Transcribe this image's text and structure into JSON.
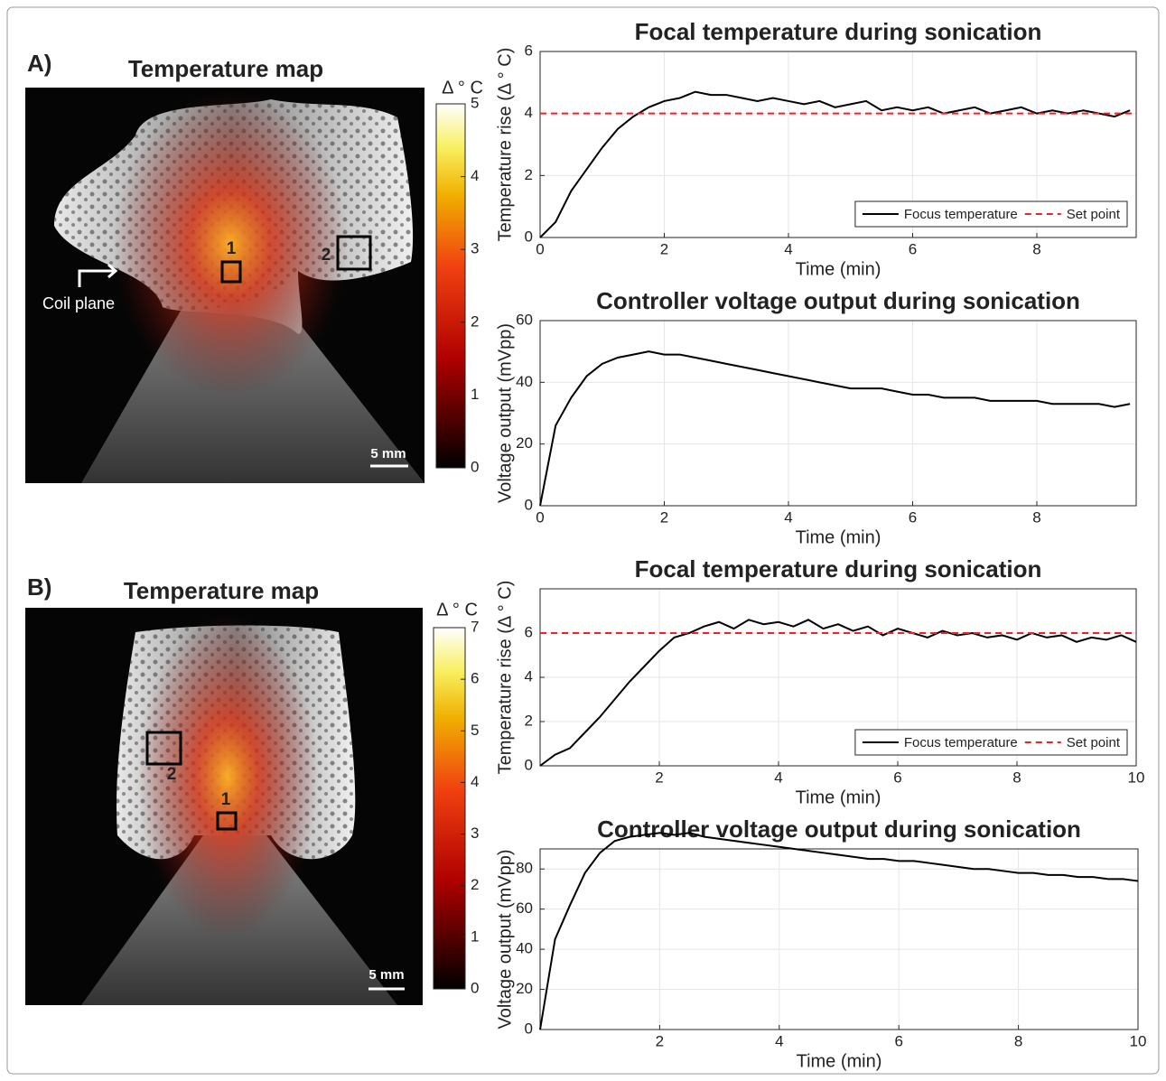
{
  "panels": [
    {
      "label": "A)",
      "map": {
        "title": "Temperature map",
        "colorbar": {
          "label": "Δ ° C",
          "lim": [
            0,
            5
          ],
          "ticks": [
            0,
            1,
            2,
            3,
            4,
            5
          ]
        },
        "roi_labels": [
          "1",
          "2"
        ],
        "annotation": "Coil plane",
        "scale_bar": "5 mm"
      }
    },
    {
      "label": "B)",
      "map": {
        "title": "Temperature map",
        "colorbar": {
          "label": "Δ ° C",
          "lim": [
            0,
            7
          ],
          "ticks": [
            0,
            1,
            2,
            3,
            4,
            5,
            6,
            7
          ]
        },
        "roi_labels": [
          "1",
          "2"
        ],
        "scale_bar": "5 mm"
      }
    }
  ],
  "chart_data": [
    {
      "type": "line",
      "title": "Focal temperature during sonication",
      "xlabel": "Time (min)",
      "ylabel": "Temperature rise (Δ ° C)",
      "xlim": [
        0,
        9.6
      ],
      "ylim": [
        0,
        6
      ],
      "xticks": [
        0,
        2,
        4,
        6,
        8
      ],
      "yticks": [
        0,
        2,
        4,
        6
      ],
      "grid": true,
      "legend": "lower right",
      "x": [
        0,
        0.25,
        0.5,
        0.75,
        1,
        1.25,
        1.5,
        1.75,
        2,
        2.25,
        2.5,
        2.75,
        3,
        3.25,
        3.5,
        3.75,
        4,
        4.25,
        4.5,
        4.75,
        5,
        5.25,
        5.5,
        5.75,
        6,
        6.25,
        6.5,
        6.75,
        7,
        7.25,
        7.5,
        7.75,
        8,
        8.25,
        8.5,
        8.75,
        9,
        9.25,
        9.5
      ],
      "series": [
        {
          "name": "Focus temperature",
          "color": "#000000",
          "values": [
            0,
            0.5,
            1.5,
            2.2,
            2.9,
            3.5,
            3.9,
            4.2,
            4.4,
            4.5,
            4.7,
            4.6,
            4.6,
            4.5,
            4.4,
            4.5,
            4.4,
            4.3,
            4.4,
            4.2,
            4.3,
            4.4,
            4.1,
            4.2,
            4.1,
            4.2,
            4.0,
            4.1,
            4.2,
            4.0,
            4.1,
            4.2,
            4.0,
            4.1,
            4.0,
            4.1,
            4.0,
            3.9,
            4.1
          ]
        },
        {
          "name": "Set point",
          "color": "#e8262a",
          "linestyle": "dashed",
          "x": [
            0,
            9.6
          ],
          "values": [
            4,
            4
          ]
        }
      ]
    },
    {
      "type": "line",
      "title": "Controller voltage output during sonication",
      "xlabel": "Time (min)",
      "ylabel": "Voltage output (mVpp)",
      "xlim": [
        0,
        9.6
      ],
      "ylim": [
        0,
        60
      ],
      "xticks": [
        0,
        2,
        4,
        6,
        8
      ],
      "yticks": [
        0,
        20,
        40,
        60
      ],
      "grid": true,
      "x": [
        0,
        0.25,
        0.5,
        0.75,
        1,
        1.25,
        1.5,
        1.75,
        2,
        2.25,
        2.5,
        2.75,
        3,
        3.25,
        3.5,
        3.75,
        4,
        4.25,
        4.5,
        4.75,
        5,
        5.25,
        5.5,
        5.75,
        6,
        6.25,
        6.5,
        6.75,
        7,
        7.25,
        7.5,
        7.75,
        8,
        8.25,
        8.5,
        8.75,
        9,
        9.25,
        9.5
      ],
      "series": [
        {
          "color": "#000000",
          "values": [
            0,
            26,
            35,
            42,
            46,
            48,
            49,
            50,
            49,
            49,
            48,
            47,
            46,
            45,
            44,
            43,
            42,
            41,
            40,
            39,
            38,
            38,
            38,
            37,
            36,
            36,
            35,
            35,
            35,
            34,
            34,
            34,
            34,
            33,
            33,
            33,
            33,
            32,
            33
          ]
        }
      ]
    },
    {
      "type": "line",
      "title": "Focal temperature during sonication",
      "xlabel": "Time (min)",
      "ylabel": "Temperature rise (Δ ° C)",
      "xlim": [
        0,
        10
      ],
      "ylim": [
        0,
        8
      ],
      "xticks": [
        2,
        4,
        6,
        8,
        10
      ],
      "yticks": [
        0,
        2,
        4,
        6
      ],
      "grid": true,
      "legend": "lower right",
      "x": [
        0,
        0.25,
        0.5,
        0.75,
        1,
        1.25,
        1.5,
        1.75,
        2,
        2.25,
        2.5,
        2.75,
        3,
        3.25,
        3.5,
        3.75,
        4,
        4.25,
        4.5,
        4.75,
        5,
        5.25,
        5.5,
        5.75,
        6,
        6.25,
        6.5,
        6.75,
        7,
        7.25,
        7.5,
        7.75,
        8,
        8.25,
        8.5,
        8.75,
        9,
        9.25,
        9.5,
        9.75,
        10
      ],
      "series": [
        {
          "name": "Focus temperature",
          "color": "#000000",
          "values": [
            0,
            0.5,
            0.8,
            1.5,
            2.2,
            3.0,
            3.8,
            4.5,
            5.2,
            5.8,
            6.0,
            6.3,
            6.5,
            6.2,
            6.6,
            6.4,
            6.5,
            6.3,
            6.6,
            6.2,
            6.4,
            6.1,
            6.3,
            5.9,
            6.2,
            6.0,
            5.8,
            6.1,
            5.9,
            6.0,
            5.8,
            5.9,
            5.7,
            6.0,
            5.8,
            5.9,
            5.6,
            5.8,
            5.7,
            5.9,
            5.6
          ]
        },
        {
          "name": "Set point",
          "color": "#e8262a",
          "linestyle": "dashed",
          "x": [
            0,
            10
          ],
          "values": [
            6,
            6
          ]
        }
      ]
    },
    {
      "type": "line",
      "title": "Controller voltage output during sonication",
      "xlabel": "Time (min)",
      "ylabel": "Voltage output (mVpp)",
      "xlim": [
        0,
        10
      ],
      "ylim": [
        0,
        90
      ],
      "xticks": [
        2,
        4,
        6,
        8,
        10
      ],
      "yticks": [
        0,
        20,
        40,
        60,
        80
      ],
      "grid": true,
      "x": [
        0,
        0.25,
        0.5,
        0.75,
        1,
        1.25,
        1.5,
        1.75,
        2,
        2.25,
        2.5,
        2.75,
        3,
        3.25,
        3.5,
        3.75,
        4,
        4.25,
        4.5,
        4.75,
        5,
        5.25,
        5.5,
        5.75,
        6,
        6.25,
        6.5,
        6.75,
        7,
        7.25,
        7.5,
        7.75,
        8,
        8.25,
        8.5,
        8.75,
        9,
        9.25,
        9.5,
        9.75,
        10
      ],
      "series": [
        {
          "color": "#000000",
          "values": [
            0,
            45,
            62,
            78,
            88,
            94,
            96,
            97,
            98,
            97,
            98,
            96,
            95,
            94,
            93,
            92,
            91,
            90,
            89,
            88,
            87,
            86,
            85,
            85,
            84,
            84,
            83,
            82,
            81,
            80,
            80,
            79,
            78,
            78,
            77,
            77,
            76,
            76,
            75,
            75,
            74
          ]
        }
      ]
    }
  ]
}
